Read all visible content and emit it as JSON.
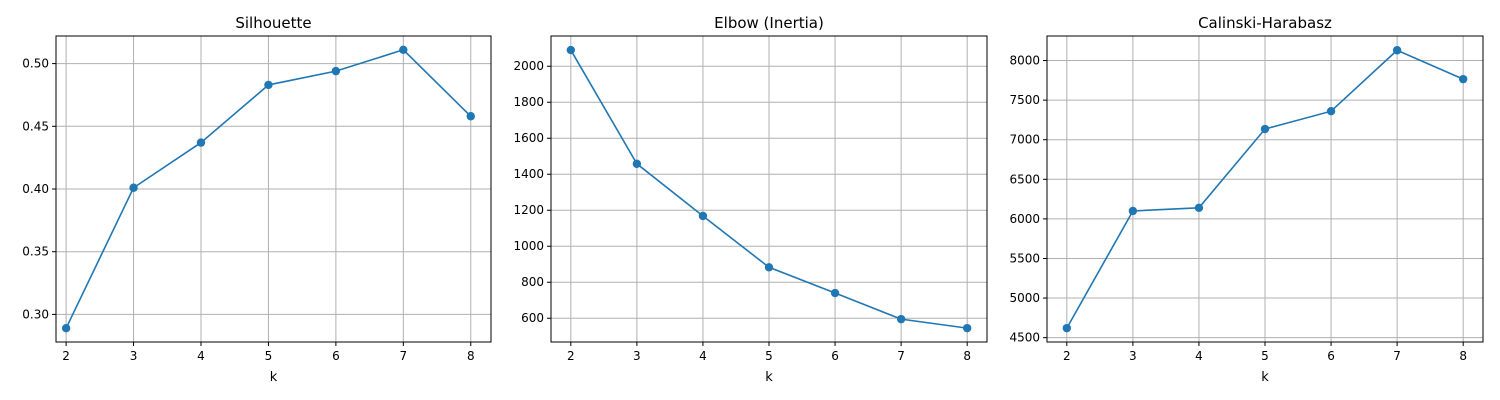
{
  "colors": {
    "series": "#1f77b4",
    "grid": "#b0b0b0",
    "background": "#ffffff"
  },
  "chart_data": [
    {
      "type": "line",
      "title": "Silhouette",
      "xlabel": "k",
      "ylabel": "",
      "grid": true,
      "marker": "circle",
      "x": [
        2,
        3,
        4,
        5,
        6,
        7,
        8
      ],
      "series": [
        {
          "values": [
            0.289,
            0.401,
            0.437,
            0.483,
            0.494,
            0.511,
            0.458
          ]
        }
      ],
      "xlim": [
        1.85,
        8.3
      ],
      "ylim": [
        0.278,
        0.522
      ],
      "xticks": [
        2,
        3,
        4,
        5,
        6,
        7,
        8
      ],
      "yticks": [
        0.3,
        0.35,
        0.4,
        0.45,
        0.5
      ],
      "ytick_labels": [
        "0.30",
        "0.35",
        "0.40",
        "0.45",
        "0.50"
      ]
    },
    {
      "type": "line",
      "title": "Elbow (Inertia)",
      "xlabel": "k",
      "ylabel": "",
      "grid": true,
      "marker": "circle",
      "x": [
        2,
        3,
        4,
        5,
        6,
        7,
        8
      ],
      "series": [
        {
          "values": [
            2090,
            1458,
            1168,
            883,
            740,
            595,
            545
          ]
        }
      ],
      "xlim": [
        1.7,
        8.3
      ],
      "ylim": [
        468,
        2168
      ],
      "xticks": [
        2,
        3,
        4,
        5,
        6,
        7,
        8
      ],
      "yticks": [
        600,
        800,
        1000,
        1200,
        1400,
        1600,
        1800,
        2000
      ],
      "ytick_labels": [
        "600",
        "800",
        "1000",
        "1200",
        "1400",
        "1600",
        "1800",
        "2000"
      ]
    },
    {
      "type": "line",
      "title": "Calinski-Harabasz",
      "xlabel": "k",
      "ylabel": "",
      "grid": true,
      "marker": "circle",
      "x": [
        2,
        3,
        4,
        5,
        6,
        7,
        8
      ],
      "series": [
        {
          "values": [
            4620,
            6100,
            6140,
            7135,
            7360,
            8130,
            7765
          ]
        }
      ],
      "xlim": [
        1.7,
        8.3
      ],
      "ylim": [
        4445,
        8310
      ],
      "xticks": [
        2,
        3,
        4,
        5,
        6,
        7,
        8
      ],
      "yticks": [
        4500,
        5000,
        5500,
        6000,
        6500,
        7000,
        7500,
        8000
      ],
      "ytick_labels": [
        "4500",
        "5000",
        "5500",
        "6000",
        "6500",
        "7000",
        "7500",
        "8000"
      ]
    }
  ]
}
